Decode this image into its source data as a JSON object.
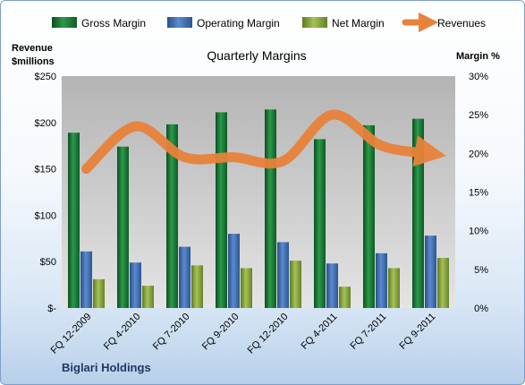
{
  "chart_data": {
    "type": "bar",
    "title": "Quarterly Margins",
    "company": "Biglari Holdings",
    "ylabel_left_line1": "Revenue",
    "ylabel_left_line2": "$millions",
    "ylabel_right": "Margin %",
    "categories": [
      "FQ 12-2009",
      "FQ 4-2010",
      "FQ 7-2010",
      "FQ 9-2010",
      "FQ 12-2010",
      "FQ 4-2011",
      "FQ 7-2011",
      "FQ 9-2011"
    ],
    "left_axis": {
      "min": 0,
      "max": 250,
      "ticks": [
        0,
        50,
        100,
        150,
        200,
        250
      ],
      "tick_labels": [
        "$-",
        "$50",
        "$100",
        "$150",
        "$200",
        "$250"
      ]
    },
    "right_axis": {
      "min": 0,
      "max": 30,
      "ticks": [
        0,
        5,
        10,
        15,
        20,
        25,
        30
      ],
      "tick_labels": [
        "0%",
        "5%",
        "10%",
        "15%",
        "20%",
        "25%",
        "30%"
      ]
    },
    "series": [
      {
        "name": "Gross Margin",
        "axis": "left",
        "kind": "bar",
        "color": "#1e7d3a",
        "values": [
          189,
          174,
          198,
          211,
          214,
          182,
          197,
          204
        ]
      },
      {
        "name": "Operating Margin",
        "axis": "left",
        "kind": "bar",
        "color": "#3e6eb0",
        "values": [
          61,
          49,
          66,
          80,
          71,
          48,
          59,
          78
        ]
      },
      {
        "name": "Net Margin",
        "axis": "left",
        "kind": "bar",
        "color": "#8aa63e",
        "values": [
          31,
          24,
          46,
          43,
          51,
          23,
          43,
          54
        ]
      },
      {
        "name": "Revenues",
        "axis": "right",
        "kind": "line",
        "color": "#e8823a",
        "values": [
          18,
          23.5,
          19.5,
          19.5,
          19,
          25,
          21,
          20
        ]
      }
    ],
    "legend_position": "top",
    "grid": false
  }
}
